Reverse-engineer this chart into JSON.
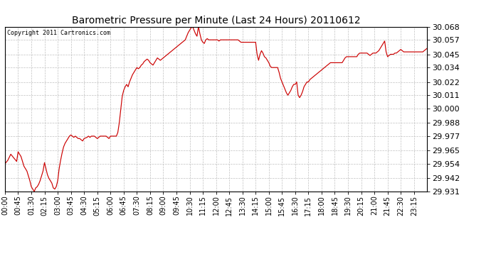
{
  "title": "Barometric Pressure per Minute (Last 24 Hours) 20110612",
  "copyright": "Copyright 2011 Cartronics.com",
  "line_color": "#cc0000",
  "bg_color": "#ffffff",
  "plot_bg_color": "#ffffff",
  "grid_color": "#c0c0c0",
  "yticks": [
    29.931,
    29.942,
    29.954,
    29.965,
    29.977,
    29.988,
    30.0,
    30.011,
    30.022,
    30.034,
    30.045,
    30.057,
    30.068
  ],
  "ylim": [
    29.931,
    30.068
  ],
  "xtick_labels": [
    "00:00",
    "00:45",
    "01:30",
    "02:15",
    "03:00",
    "03:45",
    "04:30",
    "05:15",
    "06:00",
    "06:45",
    "07:30",
    "08:15",
    "09:00",
    "09:45",
    "10:30",
    "11:15",
    "12:00",
    "12:45",
    "13:30",
    "14:15",
    "15:00",
    "15:45",
    "16:30",
    "17:15",
    "18:00",
    "18:45",
    "19:30",
    "20:15",
    "21:00",
    "21:45",
    "22:30",
    "23:15"
  ],
  "data_points": [
    [
      0,
      29.954
    ],
    [
      10,
      29.957
    ],
    [
      20,
      29.962
    ],
    [
      30,
      29.959
    ],
    [
      40,
      29.956
    ],
    [
      45,
      29.964
    ],
    [
      55,
      29.96
    ],
    [
      65,
      29.952
    ],
    [
      75,
      29.948
    ],
    [
      85,
      29.94
    ],
    [
      90,
      29.935
    ],
    [
      100,
      29.931
    ],
    [
      105,
      29.934
    ],
    [
      110,
      29.935
    ],
    [
      115,
      29.937
    ],
    [
      120,
      29.94
    ],
    [
      130,
      29.948
    ],
    [
      135,
      29.955
    ],
    [
      140,
      29.95
    ],
    [
      145,
      29.945
    ],
    [
      150,
      29.942
    ],
    [
      155,
      29.94
    ],
    [
      160,
      29.938
    ],
    [
      165,
      29.934
    ],
    [
      170,
      29.933
    ],
    [
      175,
      29.935
    ],
    [
      180,
      29.94
    ],
    [
      185,
      29.95
    ],
    [
      190,
      29.957
    ],
    [
      195,
      29.963
    ],
    [
      200,
      29.968
    ],
    [
      205,
      29.971
    ],
    [
      210,
      29.973
    ],
    [
      215,
      29.975
    ],
    [
      220,
      29.977
    ],
    [
      225,
      29.978
    ],
    [
      230,
      29.977
    ],
    [
      235,
      29.976
    ],
    [
      240,
      29.977
    ],
    [
      250,
      29.975
    ],
    [
      255,
      29.975
    ],
    [
      260,
      29.974
    ],
    [
      265,
      29.973
    ],
    [
      270,
      29.975
    ],
    [
      280,
      29.976
    ],
    [
      285,
      29.977
    ],
    [
      290,
      29.976
    ],
    [
      295,
      29.977
    ],
    [
      300,
      29.977
    ],
    [
      305,
      29.977
    ],
    [
      310,
      29.976
    ],
    [
      315,
      29.975
    ],
    [
      320,
      29.976
    ],
    [
      325,
      29.977
    ],
    [
      330,
      29.977
    ],
    [
      335,
      29.977
    ],
    [
      340,
      29.977
    ],
    [
      345,
      29.977
    ],
    [
      350,
      29.976
    ],
    [
      355,
      29.975
    ],
    [
      360,
      29.977
    ],
    [
      365,
      29.977
    ],
    [
      370,
      29.977
    ],
    [
      375,
      29.977
    ],
    [
      380,
      29.977
    ],
    [
      385,
      29.98
    ],
    [
      390,
      29.988
    ],
    [
      395,
      29.999
    ],
    [
      400,
      30.01
    ],
    [
      405,
      30.015
    ],
    [
      410,
      30.018
    ],
    [
      415,
      30.02
    ],
    [
      420,
      30.018
    ],
    [
      425,
      30.022
    ],
    [
      430,
      30.025
    ],
    [
      435,
      30.028
    ],
    [
      440,
      30.03
    ],
    [
      445,
      30.032
    ],
    [
      450,
      30.034
    ],
    [
      455,
      30.033
    ],
    [
      460,
      30.034
    ],
    [
      465,
      30.036
    ],
    [
      470,
      30.037
    ],
    [
      475,
      30.039
    ],
    [
      480,
      30.04
    ],
    [
      485,
      30.041
    ],
    [
      490,
      30.04
    ],
    [
      495,
      30.038
    ],
    [
      500,
      30.037
    ],
    [
      505,
      30.036
    ],
    [
      510,
      30.038
    ],
    [
      515,
      30.04
    ],
    [
      520,
      30.042
    ],
    [
      525,
      30.041
    ],
    [
      530,
      30.04
    ],
    [
      535,
      30.041
    ],
    [
      540,
      30.042
    ],
    [
      545,
      30.043
    ],
    [
      550,
      30.044
    ],
    [
      555,
      30.045
    ],
    [
      560,
      30.046
    ],
    [
      565,
      30.047
    ],
    [
      570,
      30.048
    ],
    [
      575,
      30.049
    ],
    [
      580,
      30.05
    ],
    [
      585,
      30.051
    ],
    [
      590,
      30.052
    ],
    [
      595,
      30.053
    ],
    [
      600,
      30.054
    ],
    [
      605,
      30.055
    ],
    [
      610,
      30.056
    ],
    [
      615,
      30.057
    ],
    [
      620,
      30.06
    ],
    [
      625,
      30.063
    ],
    [
      630,
      30.065
    ],
    [
      635,
      30.067
    ],
    [
      640,
      30.068
    ],
    [
      645,
      30.065
    ],
    [
      650,
      30.062
    ],
    [
      655,
      30.06
    ],
    [
      660,
      30.068
    ],
    [
      665,
      30.062
    ],
    [
      670,
      30.057
    ],
    [
      675,
      30.055
    ],
    [
      680,
      30.054
    ],
    [
      685,
      30.057
    ],
    [
      690,
      30.058
    ],
    [
      695,
      30.057
    ],
    [
      700,
      30.057
    ],
    [
      705,
      30.057
    ],
    [
      710,
      30.057
    ],
    [
      715,
      30.057
    ],
    [
      720,
      30.057
    ],
    [
      725,
      30.057
    ],
    [
      730,
      30.056
    ],
    [
      735,
      30.057
    ],
    [
      740,
      30.057
    ],
    [
      745,
      30.057
    ],
    [
      750,
      30.057
    ],
    [
      755,
      30.057
    ],
    [
      760,
      30.057
    ],
    [
      765,
      30.057
    ],
    [
      770,
      30.057
    ],
    [
      775,
      30.057
    ],
    [
      780,
      30.057
    ],
    [
      785,
      30.057
    ],
    [
      790,
      30.057
    ],
    [
      795,
      30.057
    ],
    [
      800,
      30.056
    ],
    [
      805,
      30.055
    ],
    [
      810,
      30.055
    ],
    [
      815,
      30.055
    ],
    [
      820,
      30.055
    ],
    [
      825,
      30.055
    ],
    [
      830,
      30.055
    ],
    [
      835,
      30.055
    ],
    [
      840,
      30.055
    ],
    [
      845,
      30.055
    ],
    [
      850,
      30.055
    ],
    [
      855,
      30.055
    ],
    [
      860,
      30.045
    ],
    [
      865,
      30.04
    ],
    [
      870,
      30.045
    ],
    [
      875,
      30.048
    ],
    [
      880,
      30.046
    ],
    [
      885,
      30.043
    ],
    [
      890,
      30.042
    ],
    [
      895,
      30.04
    ],
    [
      900,
      30.038
    ],
    [
      905,
      30.035
    ],
    [
      910,
      30.034
    ],
    [
      915,
      30.034
    ],
    [
      920,
      30.034
    ],
    [
      925,
      30.034
    ],
    [
      930,
      30.034
    ],
    [
      935,
      30.03
    ],
    [
      940,
      30.025
    ],
    [
      945,
      30.022
    ],
    [
      950,
      30.019
    ],
    [
      955,
      30.016
    ],
    [
      960,
      30.013
    ],
    [
      965,
      30.011
    ],
    [
      970,
      30.013
    ],
    [
      975,
      30.015
    ],
    [
      980,
      30.018
    ],
    [
      985,
      30.02
    ],
    [
      990,
      30.02
    ],
    [
      995,
      30.022
    ],
    [
      1000,
      30.011
    ],
    [
      1005,
      30.009
    ],
    [
      1010,
      30.011
    ],
    [
      1015,
      30.014
    ],
    [
      1020,
      30.018
    ],
    [
      1025,
      30.02
    ],
    [
      1030,
      30.022
    ],
    [
      1035,
      30.022
    ],
    [
      1040,
      30.024
    ],
    [
      1045,
      30.025
    ],
    [
      1050,
      30.026
    ],
    [
      1055,
      30.027
    ],
    [
      1060,
      30.028
    ],
    [
      1065,
      30.029
    ],
    [
      1070,
      30.03
    ],
    [
      1075,
      30.031
    ],
    [
      1080,
      30.032
    ],
    [
      1085,
      30.033
    ],
    [
      1090,
      30.034
    ],
    [
      1095,
      30.035
    ],
    [
      1100,
      30.036
    ],
    [
      1105,
      30.037
    ],
    [
      1110,
      30.038
    ],
    [
      1115,
      30.038
    ],
    [
      1120,
      30.038
    ],
    [
      1125,
      30.038
    ],
    [
      1130,
      30.038
    ],
    [
      1135,
      30.038
    ],
    [
      1140,
      30.038
    ],
    [
      1145,
      30.038
    ],
    [
      1150,
      30.038
    ],
    [
      1155,
      30.04
    ],
    [
      1160,
      30.042
    ],
    [
      1165,
      30.043
    ],
    [
      1170,
      30.043
    ],
    [
      1175,
      30.043
    ],
    [
      1180,
      30.043
    ],
    [
      1185,
      30.043
    ],
    [
      1190,
      30.043
    ],
    [
      1195,
      30.043
    ],
    [
      1200,
      30.043
    ],
    [
      1205,
      30.045
    ],
    [
      1210,
      30.046
    ],
    [
      1215,
      30.046
    ],
    [
      1220,
      30.046
    ],
    [
      1225,
      30.046
    ],
    [
      1230,
      30.046
    ],
    [
      1235,
      30.046
    ],
    [
      1240,
      30.045
    ],
    [
      1245,
      30.044
    ],
    [
      1250,
      30.045
    ],
    [
      1255,
      30.046
    ],
    [
      1260,
      30.046
    ],
    [
      1265,
      30.046
    ],
    [
      1270,
      30.047
    ],
    [
      1275,
      30.048
    ],
    [
      1280,
      30.05
    ],
    [
      1285,
      30.052
    ],
    [
      1290,
      30.054
    ],
    [
      1295,
      30.056
    ],
    [
      1300,
      30.047
    ],
    [
      1305,
      30.043
    ],
    [
      1310,
      30.044
    ],
    [
      1315,
      30.045
    ],
    [
      1320,
      30.045
    ],
    [
      1325,
      30.045
    ],
    [
      1330,
      30.046
    ],
    [
      1335,
      30.046
    ],
    [
      1340,
      30.047
    ],
    [
      1345,
      30.048
    ],
    [
      1350,
      30.049
    ],
    [
      1355,
      30.048
    ],
    [
      1360,
      30.047
    ],
    [
      1365,
      30.047
    ],
    [
      1370,
      30.047
    ],
    [
      1375,
      30.047
    ],
    [
      1380,
      30.047
    ],
    [
      1385,
      30.047
    ],
    [
      1390,
      30.047
    ],
    [
      1395,
      30.047
    ],
    [
      1400,
      30.047
    ],
    [
      1405,
      30.047
    ],
    [
      1410,
      30.047
    ],
    [
      1415,
      30.047
    ],
    [
      1420,
      30.047
    ],
    [
      1425,
      30.047
    ],
    [
      1430,
      30.048
    ],
    [
      1435,
      30.049
    ],
    [
      1440,
      30.05
    ]
  ]
}
